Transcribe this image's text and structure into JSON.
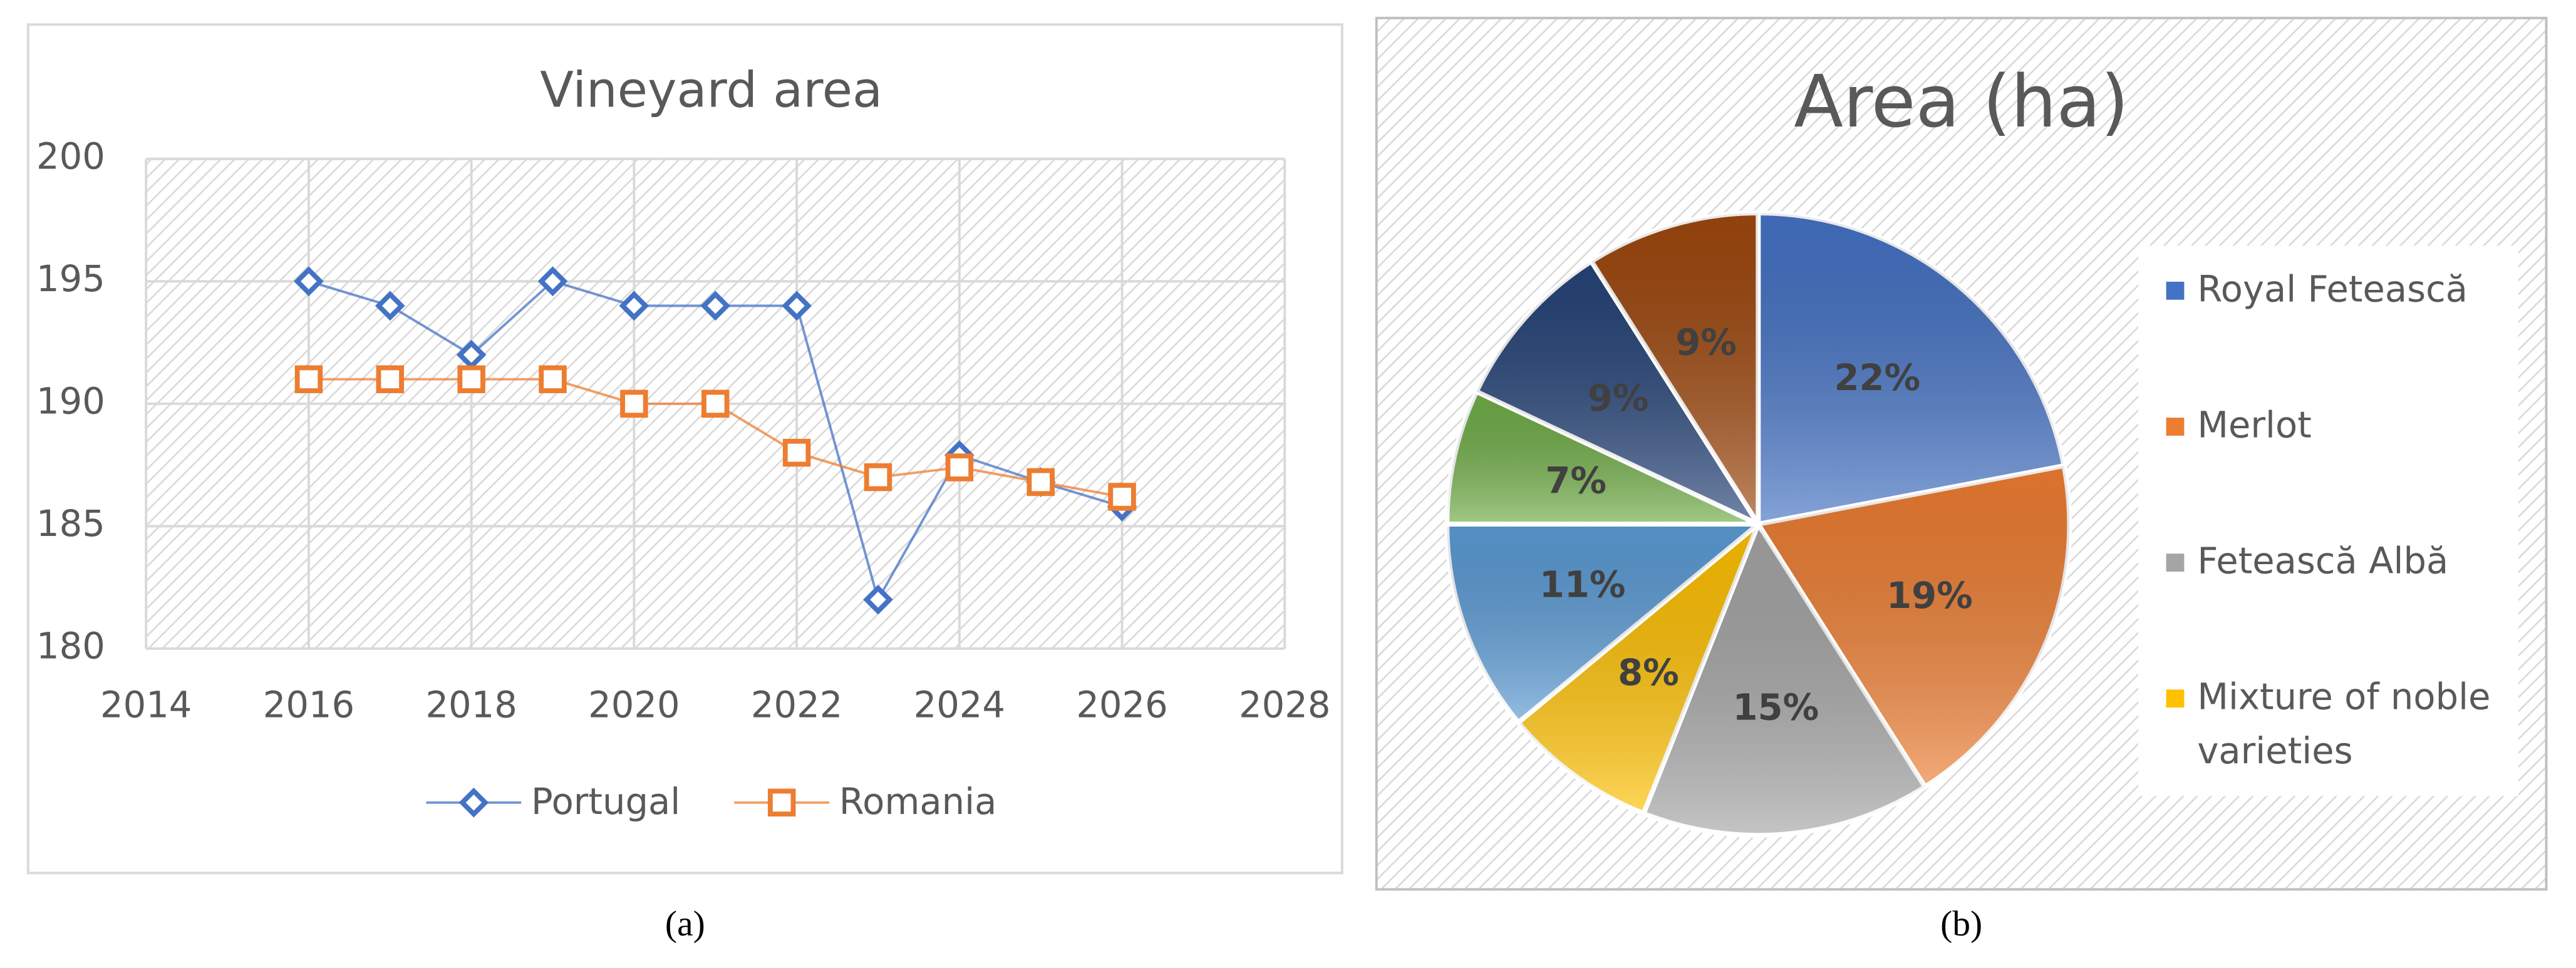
{
  "chart_data": [
    {
      "type": "line",
      "title": "Vineyard area",
      "caption": "(a)",
      "x": [
        2016,
        2017,
        2018,
        2019,
        2020,
        2021,
        2022,
        2023,
        2024,
        2025,
        2026
      ],
      "series": [
        {
          "name": "Portugal",
          "color": "#4472c4",
          "marker": "diamond",
          "values": [
            195,
            194,
            192,
            195,
            194,
            194,
            194,
            182,
            187.9,
            186.8,
            185.8
          ]
        },
        {
          "name": "Romania",
          "color": "#ed7d31",
          "marker": "square",
          "values": [
            191,
            191,
            191,
            191,
            190,
            190,
            188,
            187,
            187.4,
            186.8,
            186.2
          ]
        }
      ],
      "xlim": [
        2014,
        2028
      ],
      "xticks": [
        2014,
        2016,
        2018,
        2020,
        2022,
        2024,
        2026,
        2028
      ],
      "ylim": [
        180,
        200
      ],
      "yticks": [
        180,
        185,
        190,
        195,
        200
      ],
      "grid": true,
      "legend": "bottom"
    },
    {
      "type": "pie",
      "title": "Area (ha)",
      "caption": "(b)",
      "categories": [
        "Royal Fetească",
        "Merlot",
        "Fetească Albă",
        "Mixture of noble varieties",
        null,
        null,
        null,
        null
      ],
      "values": [
        22,
        19,
        15,
        8,
        11,
        7,
        9,
        9
      ],
      "value_labels": [
        "22%",
        "19%",
        "15%",
        "8%",
        "11%",
        "7%",
        "9%",
        "9%"
      ],
      "colors": [
        "#4472c4",
        "#ed7d31",
        "#a5a5a5",
        "#ffc000",
        "#5b9bd5",
        "#70ad47",
        "#264478",
        "#9e480e"
      ],
      "legend": "right"
    }
  ]
}
